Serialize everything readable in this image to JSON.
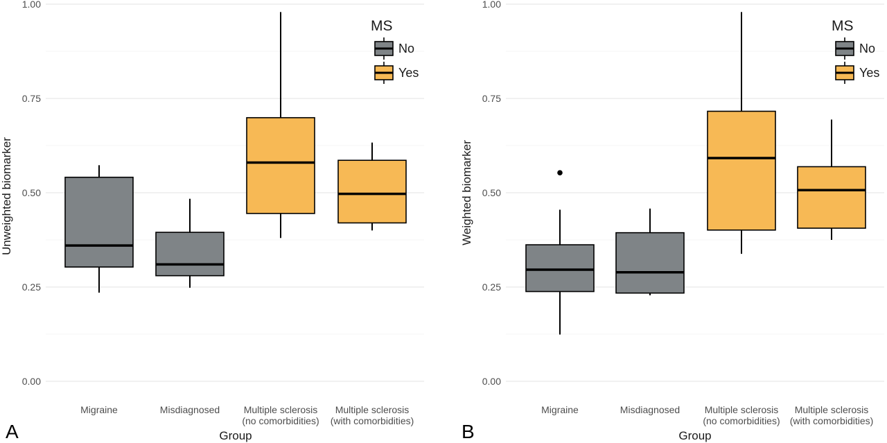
{
  "chart_data": [
    {
      "type": "boxplot",
      "panel_label": "A",
      "xlabel": "Group",
      "ylabel": "Unweighted biomarker",
      "ylim": [
        0,
        1
      ],
      "yticks": [
        "0.00",
        "0.25",
        "0.50",
        "0.75",
        "1.00"
      ],
      "grid": true,
      "legend": {
        "title": "MS",
        "position": "top-right",
        "entries": [
          {
            "label": "No",
            "color": "#7f8487"
          },
          {
            "label": "Yes",
            "color": "#f7b955"
          }
        ]
      },
      "categories": [
        [
          "Migraine"
        ],
        [
          "Misdiagnosed"
        ],
        [
          "Multiple sclerosis",
          "(no comorbidities)"
        ],
        [
          "Multiple sclerosis",
          "(with comorbidities)"
        ]
      ],
      "boxes": [
        {
          "ms": "No",
          "min": 0.235,
          "q1": 0.303,
          "median": 0.36,
          "q3": 0.541,
          "max": 0.573,
          "outliers": []
        },
        {
          "ms": "No",
          "min": 0.248,
          "q1": 0.28,
          "median": 0.31,
          "q3": 0.395,
          "max": 0.484,
          "outliers": []
        },
        {
          "ms": "Yes",
          "min": 0.38,
          "q1": 0.445,
          "median": 0.58,
          "q3": 0.699,
          "max": 0.979,
          "outliers": []
        },
        {
          "ms": "Yes",
          "min": 0.4,
          "q1": 0.42,
          "median": 0.497,
          "q3": 0.586,
          "max": 0.633,
          "outliers": []
        }
      ]
    },
    {
      "type": "boxplot",
      "panel_label": "B",
      "xlabel": "Group",
      "ylabel": "Weighted biomarker",
      "ylim": [
        0,
        1
      ],
      "yticks": [
        "0.00",
        "0.25",
        "0.50",
        "0.75",
        "1.00"
      ],
      "grid": true,
      "legend": {
        "title": "MS",
        "position": "top-right",
        "entries": [
          {
            "label": "No",
            "color": "#7f8487"
          },
          {
            "label": "Yes",
            "color": "#f7b955"
          }
        ]
      },
      "categories": [
        [
          "Migraine"
        ],
        [
          "Misdiagnosed"
        ],
        [
          "Multiple sclerosis",
          "(no comorbidities)"
        ],
        [
          "Multiple sclerosis",
          "(with comorbidities)"
        ]
      ],
      "boxes": [
        {
          "ms": "No",
          "min": 0.124,
          "q1": 0.238,
          "median": 0.296,
          "q3": 0.362,
          "max": 0.455,
          "outliers": [
            0.553
          ]
        },
        {
          "ms": "No",
          "min": 0.228,
          "q1": 0.234,
          "median": 0.289,
          "q3": 0.394,
          "max": 0.458,
          "outliers": []
        },
        {
          "ms": "Yes",
          "min": 0.338,
          "q1": 0.401,
          "median": 0.592,
          "q3": 0.716,
          "max": 0.979,
          "outliers": []
        },
        {
          "ms": "Yes",
          "min": 0.375,
          "q1": 0.406,
          "median": 0.507,
          "q3": 0.569,
          "max": 0.694,
          "outliers": []
        }
      ]
    }
  ]
}
